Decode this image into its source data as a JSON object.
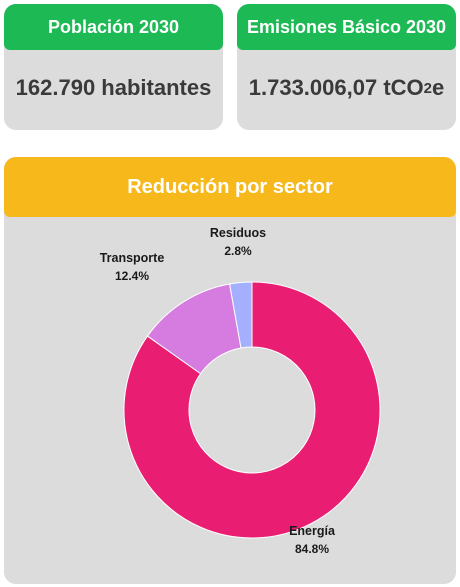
{
  "kpi_poblacion": {
    "title": "Población 2030",
    "value": "162.790 habitantes",
    "header_color": "#1db954"
  },
  "kpi_emisiones": {
    "title": "Emisiones Básico 2030",
    "value_main": "1.733.006,07 tCO",
    "value_sub": "2",
    "value_tail": "e",
    "header_color": "#1db954"
  },
  "sector_card": {
    "title": "Reducción por sector",
    "header_color": "#f6b81b"
  },
  "chart_data": {
    "type": "pie",
    "variant": "donut",
    "categories": [
      "Energía",
      "Transporte",
      "Residuos"
    ],
    "values": [
      84.8,
      12.4,
      2.8
    ],
    "labels": [
      "84.8%",
      "12.4%",
      "2.8%"
    ],
    "colors": [
      "#e91e73",
      "#d67be0",
      "#a4b0ff"
    ],
    "start_angle_deg": 0,
    "direction": "clockwise"
  }
}
